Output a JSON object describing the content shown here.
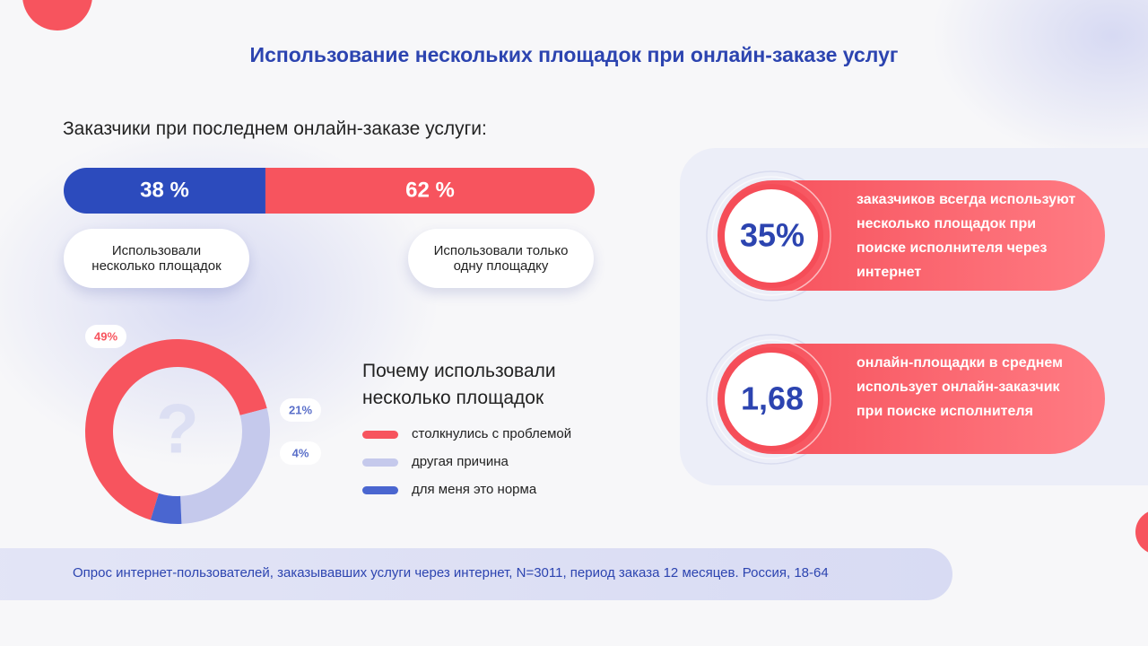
{
  "title": "Использование нескольких площадок при онлайн-заказе услуг",
  "chart_data": [
    {
      "type": "bar",
      "orientation": "horizontal",
      "stacked": true,
      "title": "Заказчики при последнем онлайн-заказе услуги:",
      "xlim": [
        0,
        100
      ],
      "series": [
        {
          "name": "Использовали несколько площадок",
          "color": "#2c4bbd",
          "values": [
            38
          ],
          "value_labels": [
            "38 %"
          ]
        },
        {
          "name": "Использовали только одну площадку",
          "color": "#f7545e",
          "values": [
            62
          ],
          "value_labels": [
            "62 %"
          ]
        }
      ]
    },
    {
      "type": "pie",
      "donut": true,
      "title": "Почему использовали несколько площадок",
      "categories": [
        "столкнулись с проблемой",
        "другая причина",
        "для меня это норма"
      ],
      "values": [
        49,
        21,
        4
      ],
      "value_labels": [
        "49%",
        "21%",
        "4%"
      ],
      "colors": [
        "#f7545e",
        "#c5c9ec",
        "#4a66d0"
      ]
    }
  ],
  "stats": [
    {
      "value": "35%",
      "text": "заказчиков всегда используют несколько площадок при поиске исполнителя через интернет"
    },
    {
      "value": "1,68",
      "text": "онлайн-площадки в среднем использует онлайн-заказчик при поиске исполнителя"
    }
  ],
  "footnote": "Опрос интернет-пользователей, заказывавших услуги через интернет, N=3011, период заказа 12 месяцев. Россия, 18-64"
}
